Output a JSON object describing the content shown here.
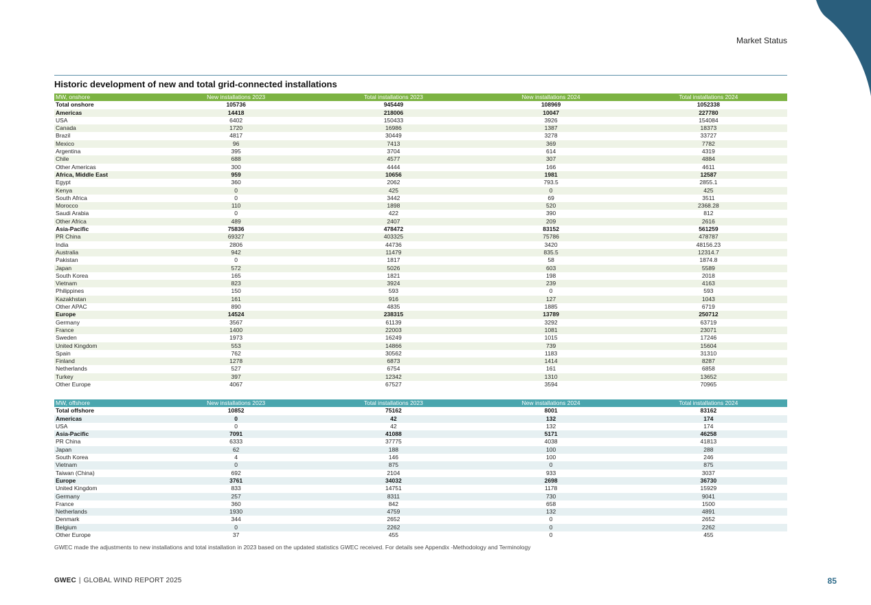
{
  "header": {
    "section": "Market Status"
  },
  "table_title": "Historic development of new and total grid-connected installations",
  "onshore": {
    "headers": [
      "MW, onshore",
      "New installations 2023",
      "Total installations 2023",
      "New installations 2024",
      "Total installations 2024"
    ],
    "rows": [
      {
        "name": "Total onshore",
        "vals": [
          "105736",
          "945449",
          "108969",
          "1052338"
        ],
        "bold": true
      },
      {
        "name": "Americas",
        "vals": [
          "14418",
          "218006",
          "10047",
          "227780"
        ],
        "bold": true
      },
      {
        "name": "USA",
        "vals": [
          "6402",
          "150433",
          "3926",
          "154084"
        ]
      },
      {
        "name": "Canada",
        "vals": [
          "1720",
          "16986",
          "1387",
          "18373"
        ]
      },
      {
        "name": "Brazil",
        "vals": [
          "4817",
          "30449",
          "3278",
          "33727"
        ]
      },
      {
        "name": "Mexico",
        "vals": [
          "96",
          "7413",
          "369",
          "7782"
        ]
      },
      {
        "name": "Argentina",
        "vals": [
          "395",
          "3704",
          "614",
          "4319"
        ]
      },
      {
        "name": "Chile",
        "vals": [
          "688",
          "4577",
          "307",
          "4884"
        ]
      },
      {
        "name": "Other Americas",
        "vals": [
          "300",
          "4444",
          "166",
          "4611"
        ]
      },
      {
        "name": "Africa, Middle East",
        "vals": [
          "959",
          "10656",
          "1981",
          "12587"
        ],
        "bold": true
      },
      {
        "name": "Egypt",
        "vals": [
          "360",
          "2062",
          "793.5",
          "2855.1"
        ]
      },
      {
        "name": "Kenya",
        "vals": [
          "0",
          "425",
          "0",
          "425"
        ]
      },
      {
        "name": "South Africa",
        "vals": [
          "0",
          "3442",
          "69",
          "3511"
        ]
      },
      {
        "name": "Morocco",
        "vals": [
          "110",
          "1898",
          "520",
          "2368.28"
        ]
      },
      {
        "name": "Saudi Arabia",
        "vals": [
          "0",
          "422",
          "390",
          "812"
        ]
      },
      {
        "name": "Other Africa",
        "vals": [
          "489",
          "2407",
          "209",
          "2616"
        ]
      },
      {
        "name": "Asia-Pacific",
        "vals": [
          "75836",
          "478472",
          "83152",
          "561259"
        ],
        "bold": true
      },
      {
        "name": "PR China",
        "vals": [
          "69327",
          "403325",
          "75786",
          "478787"
        ]
      },
      {
        "name": "India",
        "vals": [
          "2806",
          "44736",
          "3420",
          "48156.23"
        ]
      },
      {
        "name": "Australia",
        "vals": [
          "942",
          "11479",
          "835.5",
          "12314.7"
        ]
      },
      {
        "name": "Pakistan",
        "vals": [
          "0",
          "1817",
          "58",
          "1874.8"
        ]
      },
      {
        "name": "Japan",
        "vals": [
          "572",
          "5026",
          "603",
          "5589"
        ]
      },
      {
        "name": "South Korea",
        "vals": [
          "165",
          "1821",
          "198",
          "2018"
        ]
      },
      {
        "name": "Vietnam",
        "vals": [
          "823",
          "3924",
          "239",
          "4163"
        ]
      },
      {
        "name": "Philippines",
        "vals": [
          "150",
          "593",
          "0",
          "593"
        ]
      },
      {
        "name": "Kazakhstan",
        "vals": [
          "161",
          "916",
          "127",
          "1043"
        ]
      },
      {
        "name": "Other APAC",
        "vals": [
          "890",
          "4835",
          "1885",
          "6719"
        ]
      },
      {
        "name": "Europe",
        "vals": [
          "14524",
          "238315",
          "13789",
          "250712"
        ],
        "bold": true
      },
      {
        "name": "Germany",
        "vals": [
          "3567",
          "61139",
          "3292",
          "63719"
        ]
      },
      {
        "name": "France",
        "vals": [
          "1400",
          "22003",
          "1081",
          "23071"
        ]
      },
      {
        "name": "Sweden",
        "vals": [
          "1973",
          "16249",
          "1015",
          "17246"
        ]
      },
      {
        "name": "United Kingdom",
        "vals": [
          "553",
          "14866",
          "739",
          "15604"
        ]
      },
      {
        "name": "Spain",
        "vals": [
          "762",
          "30562",
          "1183",
          "31310"
        ]
      },
      {
        "name": "Finland",
        "vals": [
          "1278",
          "6873",
          "1414",
          "8287"
        ]
      },
      {
        "name": "Netherlands",
        "vals": [
          "527",
          "6754",
          "161",
          "6858"
        ]
      },
      {
        "name": "Turkey",
        "vals": [
          "397",
          "12342",
          "1310",
          "13652"
        ]
      },
      {
        "name": "Other Europe",
        "vals": [
          "4067",
          "67527",
          "3594",
          "70965"
        ]
      }
    ]
  },
  "offshore": {
    "headers": [
      "MW, offshore",
      "New installations 2023",
      "Total installations 2023",
      "New installations 2024",
      "Total installations 2024"
    ],
    "rows": [
      {
        "name": "Total offshore",
        "vals": [
          "10852",
          "75162",
          "8001",
          "83162"
        ],
        "bold": true
      },
      {
        "name": "Americas",
        "vals": [
          "0",
          "42",
          "132",
          "174"
        ],
        "bold": true
      },
      {
        "name": "USA",
        "vals": [
          "0",
          "42",
          "132",
          "174"
        ]
      },
      {
        "name": "Asia-Pacific",
        "vals": [
          "7091",
          "41088",
          "5171",
          "46258"
        ],
        "bold": true
      },
      {
        "name": "PR China",
        "vals": [
          "6333",
          "37775",
          "4038",
          "41813"
        ]
      },
      {
        "name": "Japan",
        "vals": [
          "62",
          "188",
          "100",
          "288"
        ]
      },
      {
        "name": "South Korea",
        "vals": [
          "4",
          "146",
          "100",
          "246"
        ]
      },
      {
        "name": "Vietnam",
        "vals": [
          "0",
          "875",
          "0",
          "875"
        ]
      },
      {
        "name": "Taiwan (China)",
        "vals": [
          "692",
          "2104",
          "933",
          "3037"
        ]
      },
      {
        "name": "Europe",
        "vals": [
          "3761",
          "34032",
          "2698",
          "36730"
        ],
        "bold": true
      },
      {
        "name": "United Kingdom",
        "vals": [
          "833",
          "14751",
          "1178",
          "15929"
        ]
      },
      {
        "name": "Germany",
        "vals": [
          "257",
          "8311",
          "730",
          "9041"
        ]
      },
      {
        "name": "France",
        "vals": [
          "360",
          "842",
          "658",
          "1500"
        ]
      },
      {
        "name": "Netherlands",
        "vals": [
          "1930",
          "4759",
          "132",
          "4891"
        ]
      },
      {
        "name": "Denmark",
        "vals": [
          "344",
          "2652",
          "0",
          "2652"
        ]
      },
      {
        "name": "Belgium",
        "vals": [
          "0",
          "2262",
          "0",
          "2262"
        ]
      },
      {
        "name": "Other Europe",
        "vals": [
          "37",
          "455",
          "0",
          "455"
        ]
      }
    ]
  },
  "note": "GWEC made the adjustments to new installations and total installation in 2023 based on the updated statistics GWEC received. For details see Appendix -Methodology and Terminology",
  "footer": {
    "brand": "GWEC",
    "separator": "|",
    "report": "GLOBAL WIND REPORT 2025",
    "page": "85"
  },
  "colors": {
    "onshore_header": "#7cb342",
    "offshore_header": "#4aa6ae",
    "accent": "#2e6b8a",
    "corner": "#2a5e7c"
  }
}
